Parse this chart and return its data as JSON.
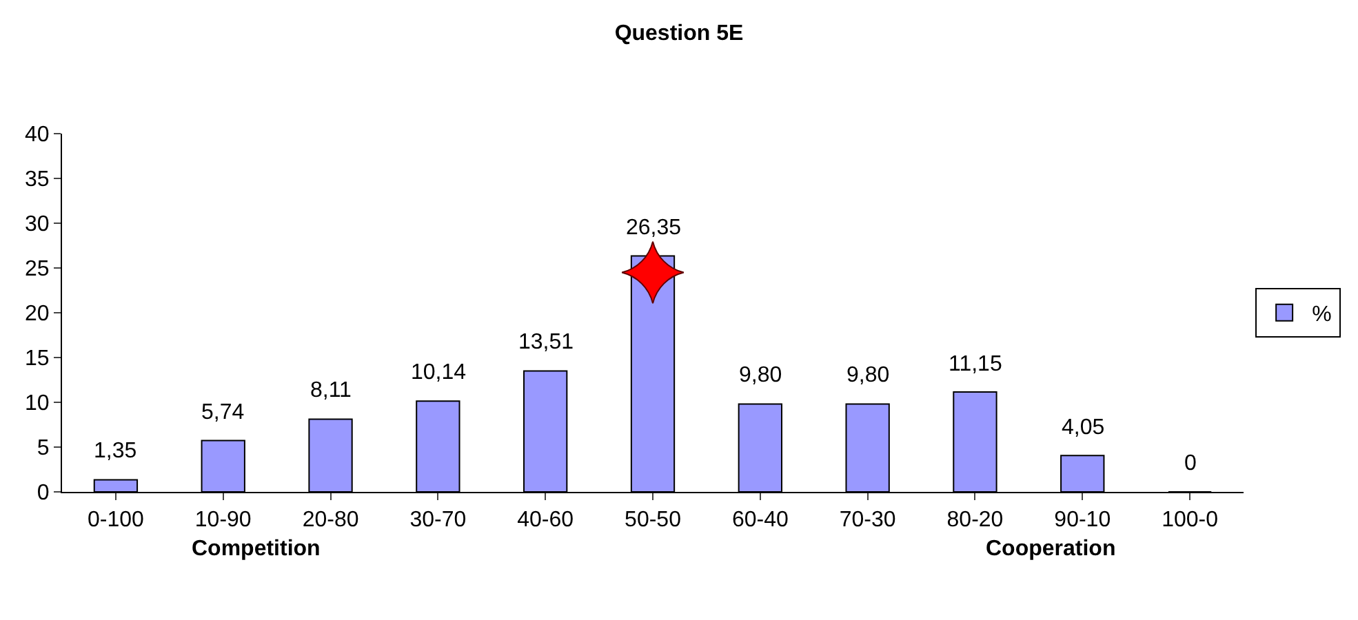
{
  "chart_data": {
    "type": "bar",
    "title": "Question 5E",
    "categories": [
      "0-100",
      "10-90",
      "20-80",
      "30-70",
      "40-60",
      "50-50",
      "60-40",
      "70-30",
      "80-20",
      "90-10",
      "100-0"
    ],
    "series": [
      {
        "name": "%",
        "color": "#9999ff",
        "values": [
          1.35,
          5.74,
          8.11,
          10.14,
          13.51,
          26.35,
          9.8,
          9.8,
          11.15,
          4.05,
          0
        ],
        "value_labels": [
          "1,35",
          "5,74",
          "8,11",
          "10,14",
          "13,51",
          "26,35",
          "9,80",
          "9,80",
          "11,15",
          "4,05",
          "0"
        ]
      },
      {
        "type": "scatter",
        "marker": "star",
        "color": "#ff0000",
        "x": [
          "50-50"
        ],
        "values": [
          24.5
        ]
      }
    ],
    "ylim": [
      0,
      40
    ],
    "yticks": [
      0,
      5,
      10,
      15,
      20,
      25,
      30,
      35,
      40
    ],
    "legend": "right",
    "annotations": [
      "Competition",
      "Cooperation"
    ]
  }
}
